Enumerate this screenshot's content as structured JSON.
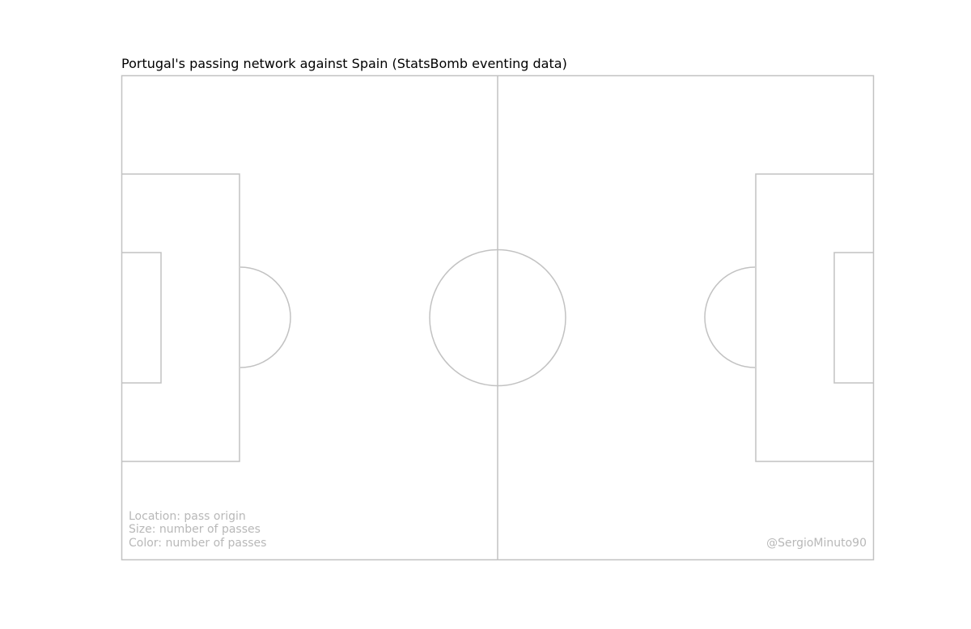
{
  "title": "Portugal's passing network against Spain (StatsBomb eventing data)",
  "legend": {
    "location": "Location: pass origin",
    "size": "Size: number of passes",
    "color": "Color: number of passes"
  },
  "credit": "@SergioMinuto90",
  "colors": {
    "pitch_lines": "#c2c2c2",
    "annotation_text": "#b8b8b8",
    "title_text": "#000000",
    "background": "#ffffff"
  }
}
